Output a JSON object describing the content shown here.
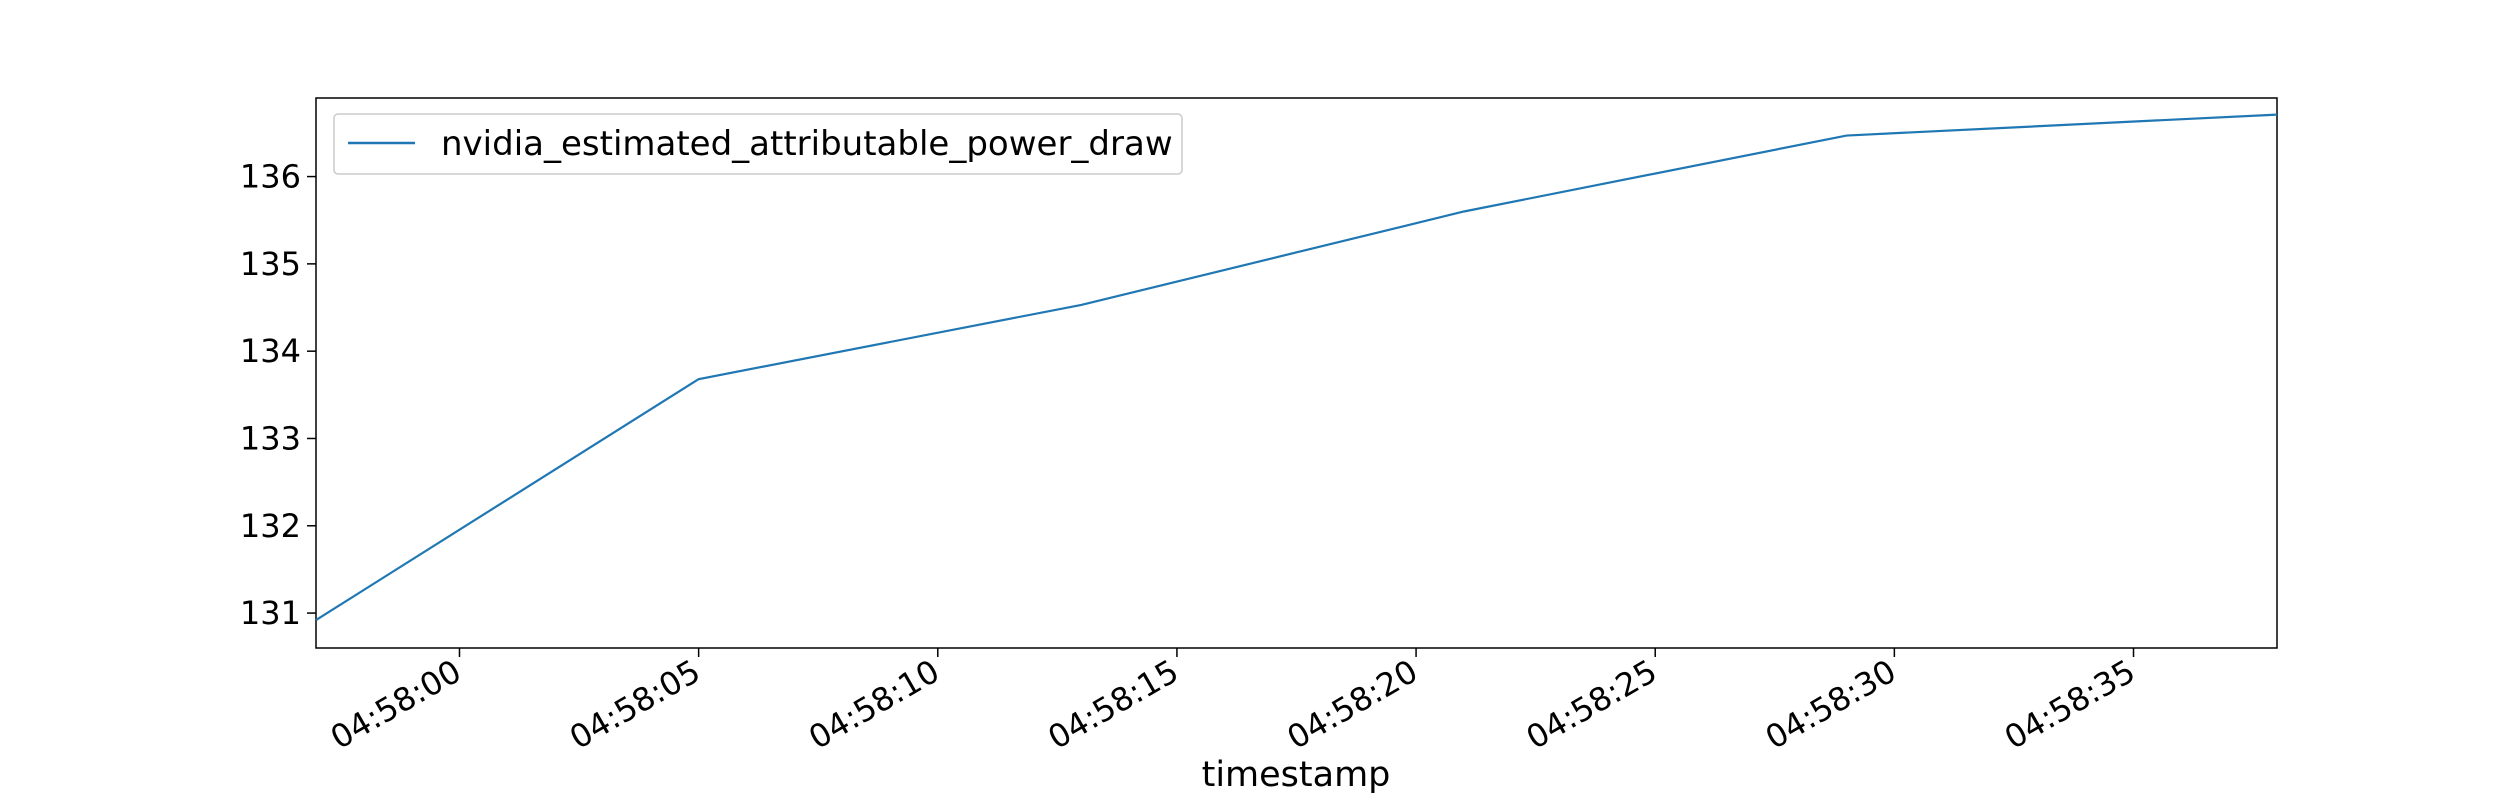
{
  "chart_data": {
    "type": "line",
    "title": "",
    "xlabel": "timestamp",
    "ylabel": "",
    "x_start": "04:57:57",
    "x_end": "04:58:38",
    "xlim": [
      "04:57:57",
      "04:58:38"
    ],
    "ylim": [
      130.6,
      136.9
    ],
    "x_ticks": [
      "04:58:00",
      "04:58:05",
      "04:58:10",
      "04:58:15",
      "04:58:20",
      "04:58:25",
      "04:58:30",
      "04:58:35"
    ],
    "y_ticks": [
      131,
      132,
      133,
      134,
      135,
      136
    ],
    "grid": false,
    "legend_position": "top-left",
    "series": [
      {
        "name": "nvidia_estimated_attributable_power_draw",
        "color": "#1f77b4",
        "points": [
          {
            "x": "04:57:57",
            "y": 130.92
          },
          {
            "x": "04:58:05",
            "y": 133.68
          },
          {
            "x": "04:58:13",
            "y": 134.53
          },
          {
            "x": "04:58:21",
            "y": 135.6
          },
          {
            "x": "04:58:29",
            "y": 136.47
          },
          {
            "x": "04:58:38",
            "y": 136.71
          }
        ]
      }
    ]
  }
}
